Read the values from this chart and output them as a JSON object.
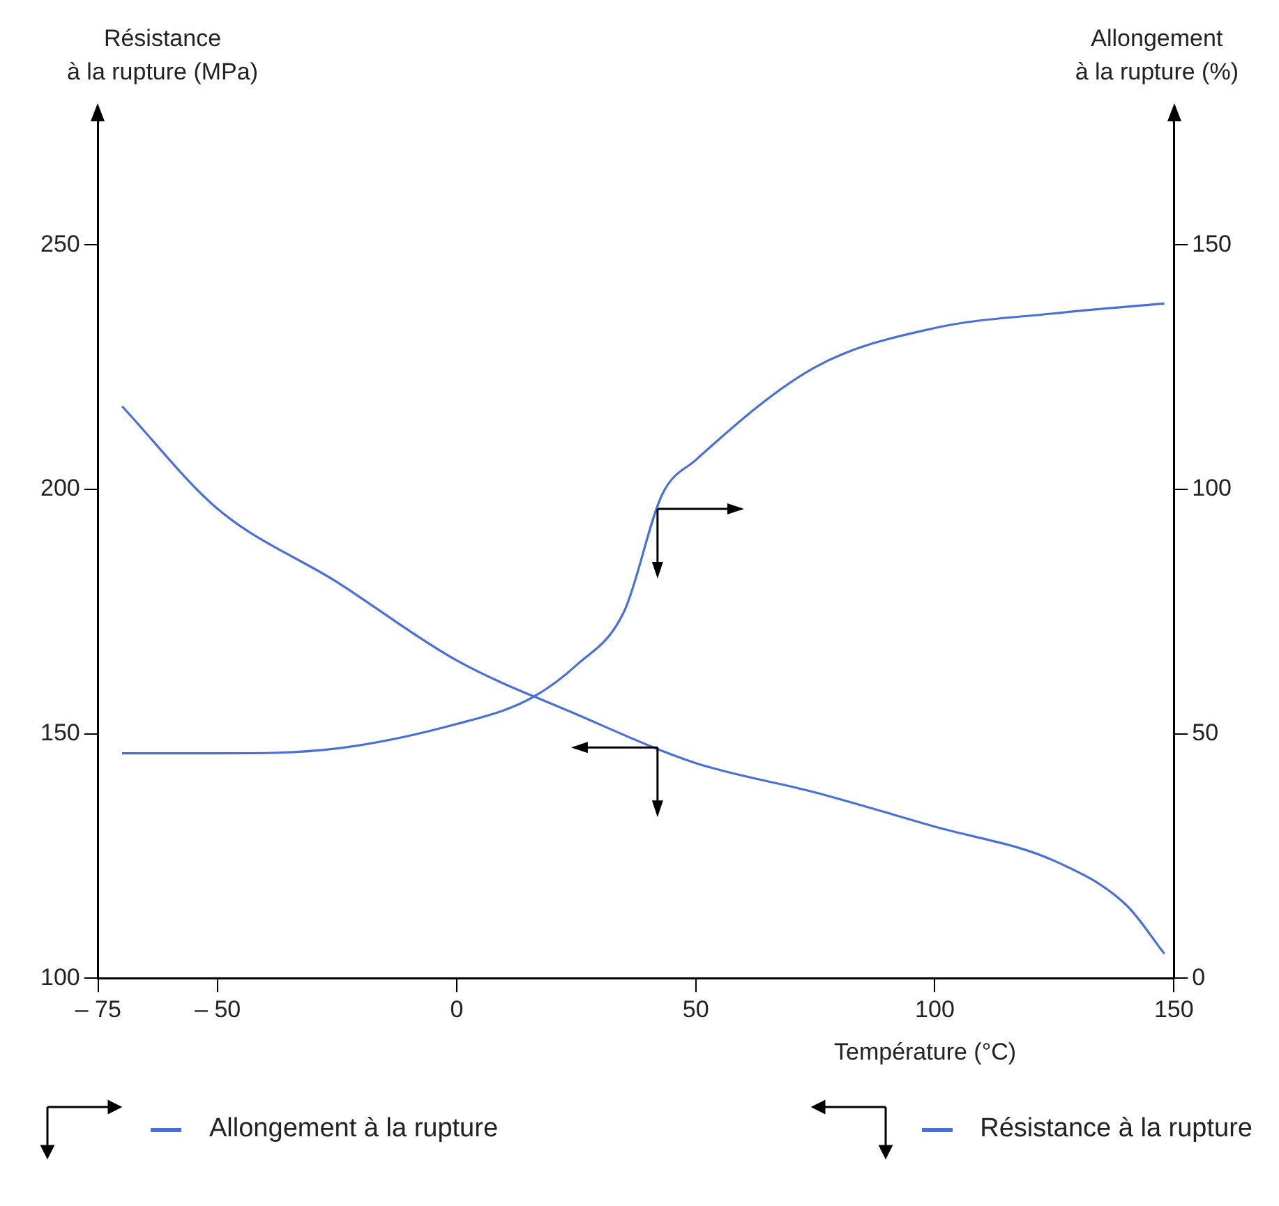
{
  "chart_data": {
    "type": "line",
    "xlabel": "Température (°C)",
    "ylabel": "Résistance\nà la rupture (MPa)",
    "y2label": "Allongement\nà la rupture (%)",
    "series": [
      {
        "name": "Allongement à la rupture",
        "color": "#4a6fd8",
        "axis": "y2",
        "x": [
          -70,
          -50,
          -25,
          0,
          15,
          25,
          35,
          43,
          50,
          75,
          100,
          125,
          148
        ],
        "values": [
          46,
          46,
          47,
          52,
          57,
          64,
          75,
          99,
          106,
          125,
          133,
          136,
          138
        ]
      },
      {
        "name": "Résistance à la rupture",
        "color": "#4a6fd8",
        "axis": "y",
        "x": [
          -70,
          -50,
          -25,
          0,
          25,
          50,
          75,
          100,
          125,
          140,
          148
        ],
        "values": [
          217,
          196,
          181,
          165,
          154,
          144,
          138,
          131,
          124,
          115,
          105
        ]
      }
    ],
    "xlim": [
      -75,
      150
    ],
    "xticks": [
      {
        "value": -75,
        "label": "– 75"
      },
      {
        "value": -50,
        "label": "– 50"
      },
      0,
      50,
      100,
      150
    ],
    "ylim": [
      100,
      275
    ],
    "yticks": [
      100,
      150,
      200,
      250
    ],
    "y2lim": [
      0,
      175
    ],
    "y2ticks": [
      0,
      50,
      100,
      150
    ],
    "grid": false,
    "legend": "bottom",
    "marker": "none",
    "line_style": "solid"
  }
}
